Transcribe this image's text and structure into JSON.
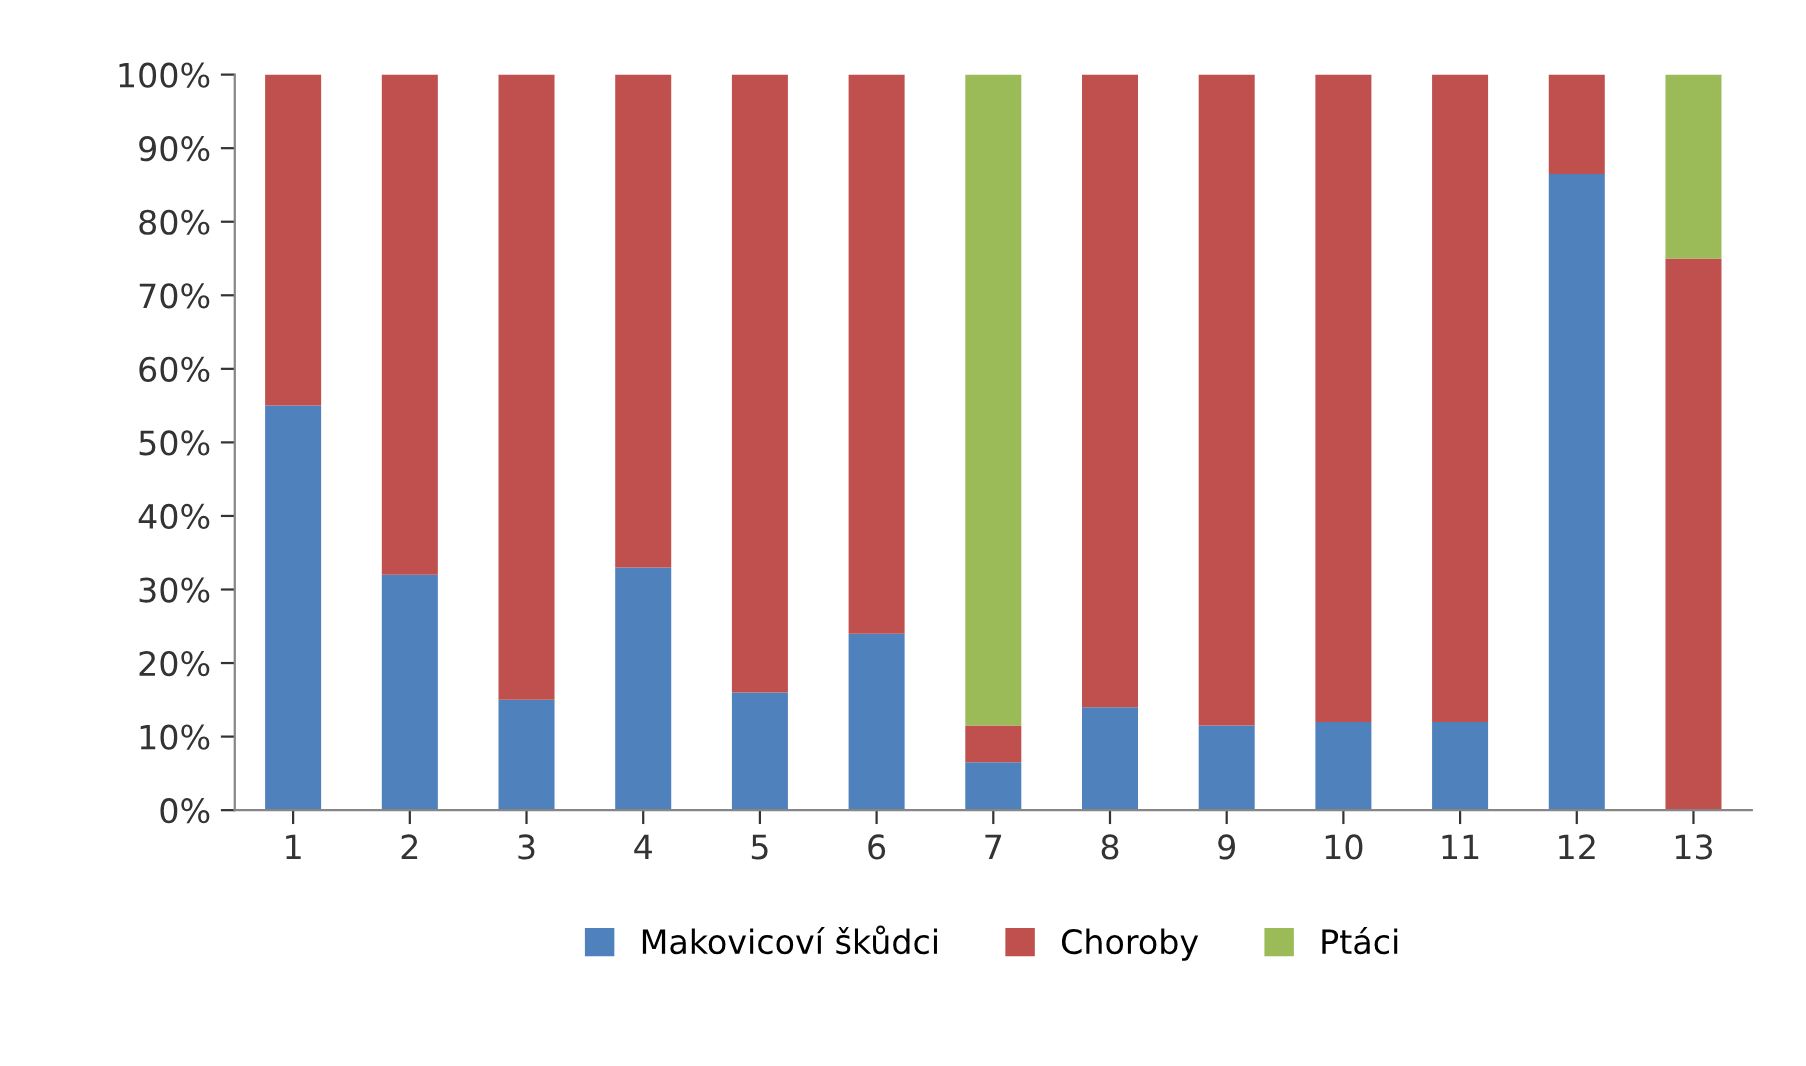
{
  "chart_data": {
    "type": "bar",
    "stacked": true,
    "categories": [
      "1",
      "2",
      "3",
      "4",
      "5",
      "6",
      "7",
      "8",
      "9",
      "10",
      "11",
      "12",
      "13"
    ],
    "series": [
      {
        "name": "Makovicoví škůdci",
        "color": "#4f81bd",
        "values": [
          55,
          32,
          15,
          33,
          16,
          24,
          6.5,
          14,
          11.5,
          12,
          12,
          86.5,
          0
        ]
      },
      {
        "name": "Choroby",
        "color": "#c0504d",
        "values": [
          45,
          68,
          85,
          67,
          84,
          76,
          5,
          86,
          88.5,
          88,
          88,
          13.5,
          75
        ]
      },
      {
        "name": "Ptáci",
        "color": "#9bbb59",
        "values": [
          0,
          0,
          0,
          0,
          0,
          0,
          88.5,
          0,
          0,
          0,
          0,
          0,
          25
        ]
      }
    ],
    "ylim": [
      0,
      100
    ],
    "yticks": [
      {
        "value": 0,
        "label": "0%"
      },
      {
        "value": 10,
        "label": "10%"
      },
      {
        "value": 20,
        "label": "20%"
      },
      {
        "value": 30,
        "label": "30%"
      },
      {
        "value": 40,
        "label": "40%"
      },
      {
        "value": 50,
        "label": "50%"
      },
      {
        "value": 60,
        "label": "60%"
      },
      {
        "value": 70,
        "label": "70%"
      },
      {
        "value": 80,
        "label": "80%"
      },
      {
        "value": 90,
        "label": "90%"
      },
      {
        "value": 100,
        "label": "100%"
      }
    ],
    "grid": false,
    "legend": "bottom"
  }
}
